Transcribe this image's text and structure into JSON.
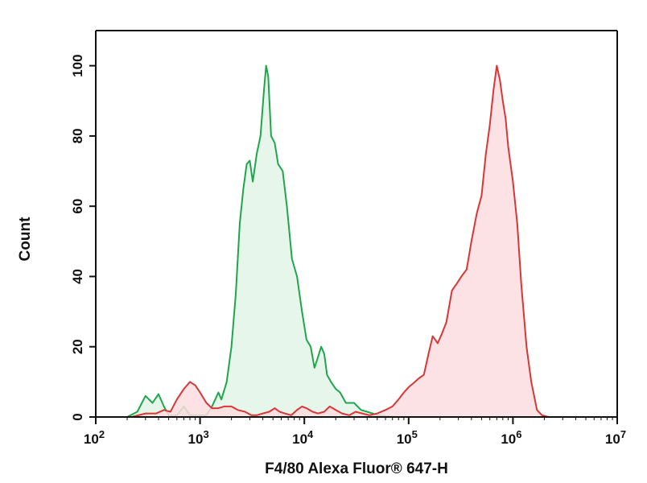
{
  "chart_data": {
    "type": "area",
    "title": "",
    "xlabel": "F4/80 Alexa Fluor® 647-H",
    "ylabel": "Count",
    "x_scale": "log",
    "xlim": [
      100,
      10000000
    ],
    "ylim": [
      0,
      110
    ],
    "x_ticks": [
      {
        "value": 100,
        "base": "10",
        "exp": "2"
      },
      {
        "value": 1000,
        "base": "10",
        "exp": "3"
      },
      {
        "value": 10000,
        "base": "10",
        "exp": "4"
      },
      {
        "value": 100000,
        "base": "10",
        "exp": "5"
      },
      {
        "value": 1000000,
        "base": "10",
        "exp": "6"
      },
      {
        "value": 10000000,
        "base": "10",
        "exp": "7"
      }
    ],
    "y_ticks": [
      {
        "value": 0,
        "label": "0"
      },
      {
        "value": 20,
        "label": "20"
      },
      {
        "value": 40,
        "label": "40"
      },
      {
        "value": 60,
        "label": "60"
      },
      {
        "value": 80,
        "label": "80"
      },
      {
        "value": 100,
        "label": "100"
      }
    ],
    "grid": false,
    "legend": "none",
    "series": [
      {
        "color": "#1fa64a",
        "fill": "#e3f4e7",
        "points": [
          [
            200,
            0
          ],
          [
            250,
            1.5
          ],
          [
            300,
            6
          ],
          [
            350,
            4
          ],
          [
            400,
            6.5
          ],
          [
            450,
            3
          ],
          [
            500,
            0.5
          ],
          [
            600,
            0.5
          ],
          [
            700,
            3
          ],
          [
            800,
            0.5
          ],
          [
            900,
            0.5
          ],
          [
            1000,
            0.5
          ],
          [
            1150,
            0.5
          ],
          [
            1300,
            3
          ],
          [
            1400,
            5
          ],
          [
            1500,
            7
          ],
          [
            1600,
            5
          ],
          [
            1800,
            10
          ],
          [
            2000,
            20
          ],
          [
            2200,
            35
          ],
          [
            2400,
            55
          ],
          [
            2600,
            65
          ],
          [
            2800,
            72
          ],
          [
            3000,
            73
          ],
          [
            3200,
            67
          ],
          [
            3500,
            75
          ],
          [
            3800,
            80
          ],
          [
            4100,
            93
          ],
          [
            4300,
            100
          ],
          [
            4500,
            97
          ],
          [
            4800,
            80
          ],
          [
            5200,
            78
          ],
          [
            5600,
            72
          ],
          [
            6200,
            70
          ],
          [
            6800,
            60
          ],
          [
            7600,
            45
          ],
          [
            8500,
            40
          ],
          [
            9500,
            30
          ],
          [
            10500,
            22
          ],
          [
            11500,
            20
          ],
          [
            12500,
            14
          ],
          [
            13500,
            17
          ],
          [
            14500,
            20
          ],
          [
            15500,
            18
          ],
          [
            16500,
            12
          ],
          [
            18000,
            10
          ],
          [
            20000,
            8
          ],
          [
            22000,
            7
          ],
          [
            25000,
            4
          ],
          [
            30000,
            4
          ],
          [
            35000,
            2
          ],
          [
            40000,
            1.5
          ],
          [
            45000,
            1
          ],
          [
            50000,
            0.5
          ],
          [
            60000,
            0.3
          ],
          [
            75000,
            0
          ]
        ]
      },
      {
        "color": "#d93636",
        "fill": "#fbdde0",
        "points": [
          [
            220,
            0
          ],
          [
            300,
            1
          ],
          [
            380,
            1
          ],
          [
            450,
            2
          ],
          [
            520,
            1.5
          ],
          [
            600,
            5
          ],
          [
            700,
            8
          ],
          [
            800,
            10
          ],
          [
            900,
            9
          ],
          [
            1000,
            7
          ],
          [
            1150,
            4
          ],
          [
            1300,
            2.5
          ],
          [
            1500,
            2.5
          ],
          [
            1700,
            3
          ],
          [
            2000,
            3
          ],
          [
            2300,
            2
          ],
          [
            2700,
            1.5
          ],
          [
            3100,
            0.5
          ],
          [
            3500,
            0.5
          ],
          [
            4000,
            1
          ],
          [
            4600,
            1.5
          ],
          [
            5200,
            2.5
          ],
          [
            5800,
            1.5
          ],
          [
            6500,
            1
          ],
          [
            7500,
            0.5
          ],
          [
            8500,
            2
          ],
          [
            9500,
            3
          ],
          [
            10500,
            2.5
          ],
          [
            12000,
            1.5
          ],
          [
            13500,
            1
          ],
          [
            15500,
            1.5
          ],
          [
            17500,
            3
          ],
          [
            20000,
            2
          ],
          [
            23000,
            1
          ],
          [
            27000,
            0.5
          ],
          [
            31000,
            1.5
          ],
          [
            36000,
            1
          ],
          [
            42000,
            0.5
          ],
          [
            50000,
            1
          ],
          [
            60000,
            2
          ],
          [
            70000,
            3
          ],
          [
            80000,
            5
          ],
          [
            90000,
            7
          ],
          [
            100000,
            8.5
          ],
          [
            110000,
            9.5
          ],
          [
            125000,
            11
          ],
          [
            140000,
            12
          ],
          [
            155000,
            18
          ],
          [
            170000,
            23
          ],
          [
            190000,
            21
          ],
          [
            210000,
            24
          ],
          [
            230000,
            27
          ],
          [
            260000,
            36
          ],
          [
            290000,
            38
          ],
          [
            320000,
            40
          ],
          [
            360000,
            42
          ],
          [
            400000,
            50
          ],
          [
            450000,
            58
          ],
          [
            500000,
            63
          ],
          [
            550000,
            75
          ],
          [
            600000,
            83
          ],
          [
            650000,
            93
          ],
          [
            700000,
            100
          ],
          [
            750000,
            96
          ],
          [
            800000,
            90
          ],
          [
            850000,
            85
          ],
          [
            900000,
            77
          ],
          [
            1000000,
            67
          ],
          [
            1100000,
            55
          ],
          [
            1200000,
            38
          ],
          [
            1350000,
            20
          ],
          [
            1500000,
            10
          ],
          [
            1700000,
            2
          ],
          [
            1900000,
            0.5
          ],
          [
            2200000,
            0
          ]
        ]
      }
    ]
  }
}
